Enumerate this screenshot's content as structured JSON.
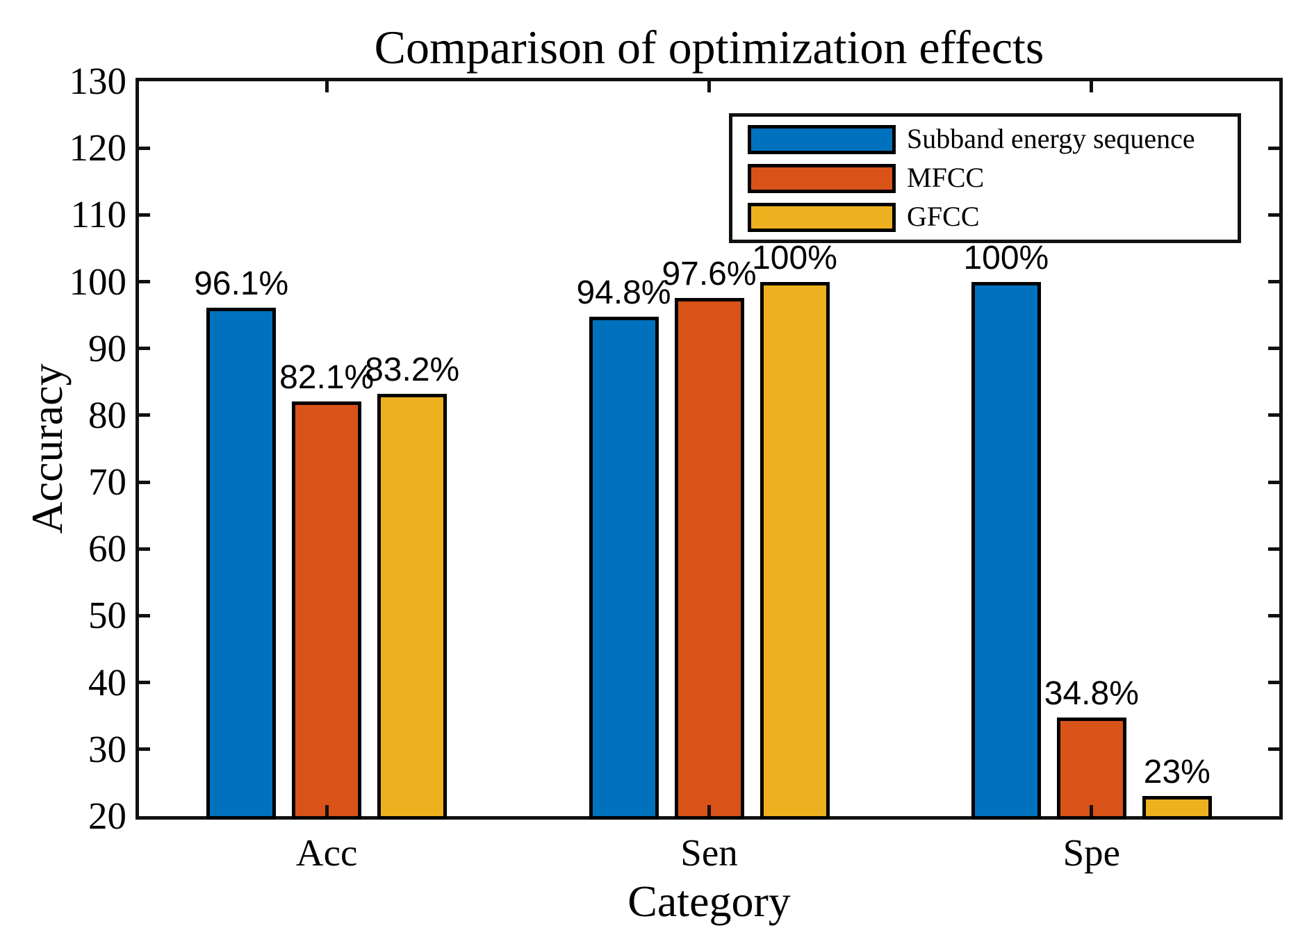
{
  "chart_data": {
    "type": "bar",
    "title": "Comparison of optimization effects",
    "xlabel": "Category",
    "ylabel": "Accuracy",
    "categories": [
      "Acc",
      "Sen",
      "Spe"
    ],
    "series": [
      {
        "name": "Subband energy sequence",
        "color": "#0072BD",
        "values": [
          96.1,
          94.8,
          100
        ],
        "labels": [
          "96.1%",
          "94.8%",
          "100%"
        ]
      },
      {
        "name": "MFCC",
        "color": "#D95319",
        "values": [
          82.1,
          97.6,
          34.8
        ],
        "labels": [
          "82.1%",
          "97.6%",
          "34.8%"
        ]
      },
      {
        "name": "GFCC",
        "color": "#EDB120",
        "values": [
          83.2,
          100,
          23
        ],
        "labels": [
          "83.2%",
          "100%",
          "23%"
        ]
      }
    ],
    "ylim": [
      20,
      130
    ],
    "yticks": [
      20,
      30,
      40,
      50,
      60,
      70,
      80,
      90,
      100,
      110,
      120,
      130
    ],
    "grid": false,
    "legend_position": "upper right",
    "bar_edge_color": "#000000",
    "axis_color": "#111111"
  }
}
